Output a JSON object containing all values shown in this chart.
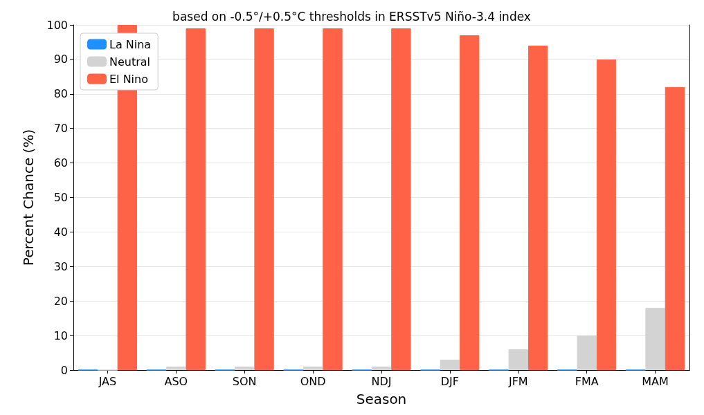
{
  "chart_data": {
    "type": "bar",
    "title": "based on -0.5°/+0.5°C thresholds in ERSSTv5 Niño-3.4 index",
    "xlabel": "Season",
    "ylabel": "Percent Chance (%)",
    "categories": [
      "JAS",
      "ASO",
      "SON",
      "OND",
      "NDJ",
      "DJF",
      "JFM",
      "FMA",
      "MAM"
    ],
    "series": [
      {
        "name": "La Nina",
        "color": "#1e90ff",
        "values": [
          0,
          0,
          0,
          0,
          0,
          0,
          0,
          0,
          0
        ]
      },
      {
        "name": "Neutral",
        "color": "#d3d3d3",
        "values": [
          0,
          1,
          1,
          1,
          1,
          3,
          6,
          10,
          18
        ]
      },
      {
        "name": "El Nino",
        "color": "#ff6347",
        "values": [
          100,
          99,
          99,
          99,
          99,
          97,
          94,
          90,
          82
        ]
      }
    ],
    "ylim": [
      0,
      100
    ],
    "yticks": [
      0,
      10,
      20,
      30,
      40,
      50,
      60,
      70,
      80,
      90,
      100
    ],
    "grid": "y",
    "legend": "top left"
  }
}
